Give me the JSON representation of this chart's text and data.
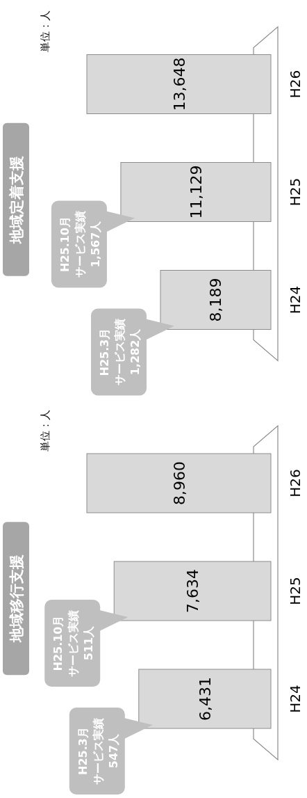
{
  "chart_data": [
    {
      "type": "bar",
      "orientation": "horizontal",
      "title": "地域移行支援",
      "categories": [
        "H26",
        "H25",
        "H24"
      ],
      "values": [
        8960,
        7634,
        6431
      ],
      "value_labels": [
        "8,960",
        "7,634",
        "6,431"
      ],
      "color": "#d9d9d9",
      "annotations": [
        "H25.10月",
        "サービス実績",
        "511人",
        "H25.3月",
        "サービス実績",
        "547人",
        "単位：人"
      ]
    },
    {
      "type": "bar",
      "orientation": "horizontal",
      "title": "地域定着支援",
      "categories": [
        "H26",
        "H25",
        "H24"
      ],
      "values": [
        13648,
        11129,
        8189
      ],
      "value_labels": [
        "13,648",
        "11,129",
        "8,189"
      ],
      "color": "#d9d9d9",
      "annotations": [
        "H25.10月",
        "サービス実績",
        "1,567人",
        "H25.3月",
        "サービス実績",
        "1,282人",
        "単位：人"
      ]
    }
  ]
}
